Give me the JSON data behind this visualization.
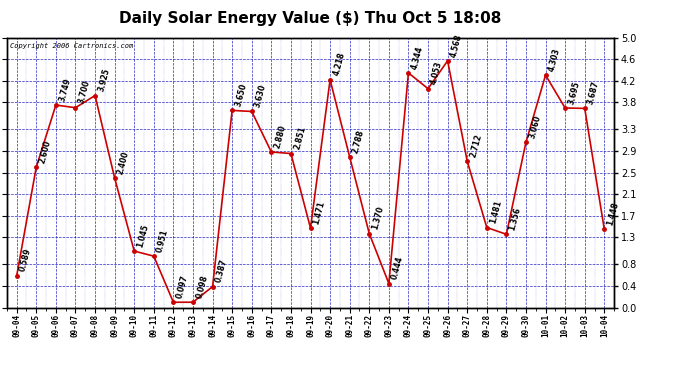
{
  "title": "Daily Solar Energy Value ($) Thu Oct 5 18:08",
  "copyright": "Copyright 2006 Cartronics.com",
  "dates": [
    "09-04",
    "09-05",
    "09-06",
    "09-07",
    "09-08",
    "09-09",
    "09-10",
    "09-11",
    "09-12",
    "09-13",
    "09-14",
    "09-15",
    "09-16",
    "09-17",
    "09-18",
    "09-19",
    "09-20",
    "09-21",
    "09-22",
    "09-23",
    "09-24",
    "09-25",
    "09-26",
    "09-27",
    "09-28",
    "09-29",
    "09-30",
    "10-01",
    "10-02",
    "10-03",
    "10-04"
  ],
  "values": [
    0.589,
    2.6,
    3.749,
    3.7,
    3.925,
    2.4,
    1.045,
    0.951,
    0.097,
    0.098,
    0.387,
    3.65,
    3.63,
    2.88,
    2.851,
    1.471,
    4.218,
    2.788,
    1.37,
    0.444,
    4.344,
    4.053,
    4.568,
    2.712,
    1.481,
    1.356,
    3.06,
    4.303,
    3.695,
    3.687,
    1.448
  ],
  "line_color": "#cc0000",
  "marker_color": "#cc0000",
  "grid_color_major": "#0000bb",
  "grid_color_minor": "#0000bb",
  "background_color": "#ffffff",
  "plot_bg_color": "#ffffff",
  "ylim": [
    0.0,
    5.0
  ],
  "yticks": [
    0.0,
    0.4,
    0.8,
    1.3,
    1.7,
    2.1,
    2.5,
    2.9,
    3.3,
    3.8,
    4.2,
    4.6,
    5.0
  ],
  "title_fontsize": 11,
  "annotation_fontsize": 5.5
}
